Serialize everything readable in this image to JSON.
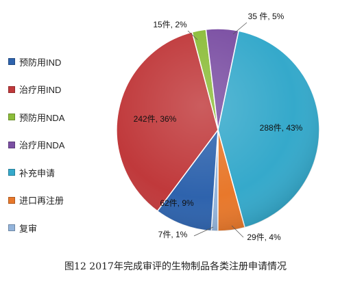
{
  "chart_data": {
    "type": "pie",
    "caption": "图12  2017年完成审评的生物制品各类注册申请情况",
    "categories": [
      "预防用IND",
      "治疗用IND",
      "预防用NDA",
      "治疗用NDA",
      "补充申请",
      "进口再注册",
      "复审"
    ],
    "values": [
      62,
      242,
      15,
      35,
      288,
      29,
      7
    ],
    "percents": [
      9,
      36,
      2,
      5,
      43,
      4,
      1
    ],
    "labels": [
      "62件, 9%",
      "242件, 36%",
      "15件, 2%",
      "35 件, 5%",
      "288件, 43%",
      "29件, 4%",
      "7件, 1%"
    ],
    "colors": [
      "#2e63ad",
      "#c0393b",
      "#8cbd3a",
      "#7b4fa3",
      "#35a9cb",
      "#e8782b",
      "#93b4db"
    ],
    "legend_position": "left"
  }
}
